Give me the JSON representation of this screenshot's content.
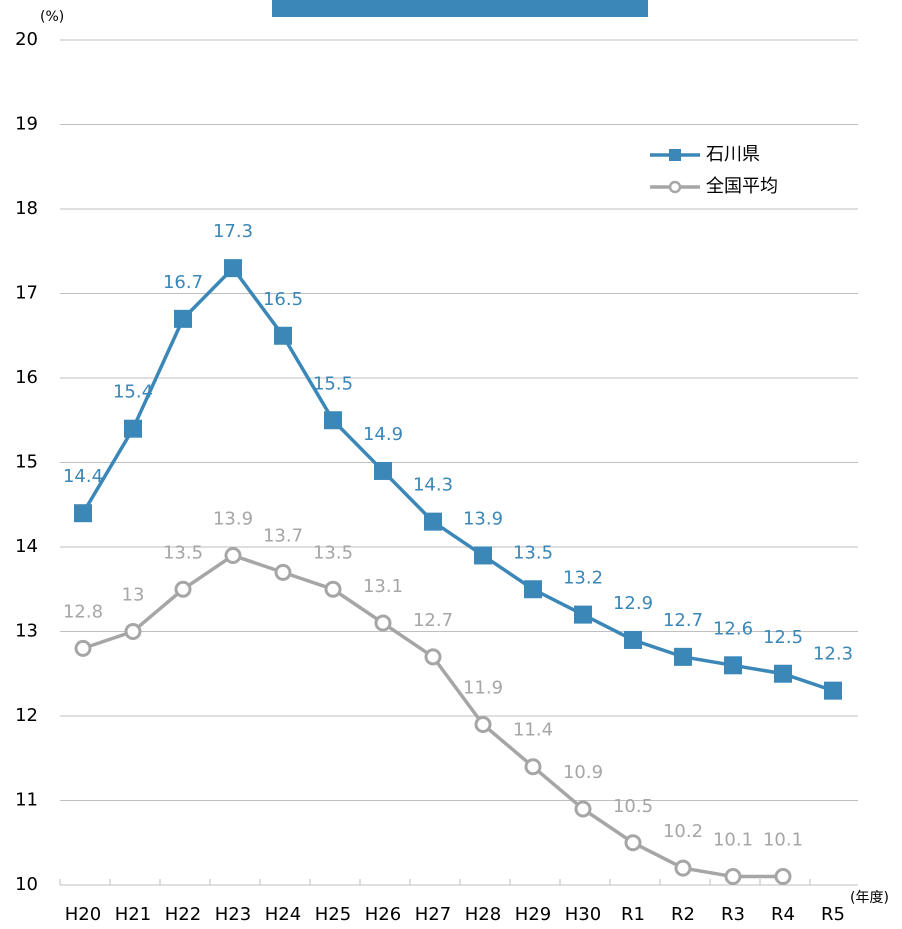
{
  "chart_data": {
    "type": "line",
    "y_unit_label": "(%)",
    "x_unit_label": "(年度)",
    "categories": [
      "H20",
      "H21",
      "H22",
      "H23",
      "H24",
      "H25",
      "H26",
      "H27",
      "H28",
      "H29",
      "H30",
      "R1",
      "R2",
      "R3",
      "R4",
      "R5"
    ],
    "series": [
      {
        "name": "石川県",
        "color": "#3a87b8",
        "marker": "square",
        "values": [
          14.4,
          15.4,
          16.7,
          17.3,
          16.5,
          15.5,
          14.9,
          14.3,
          13.9,
          13.5,
          13.2,
          12.9,
          12.7,
          12.6,
          12.5,
          12.3
        ]
      },
      {
        "name": "全国平均",
        "color": "#a6a6a6",
        "marker": "circle",
        "values": [
          12.8,
          13,
          13.5,
          13.9,
          13.7,
          13.5,
          13.1,
          12.7,
          11.9,
          11.4,
          10.9,
          10.5,
          10.2,
          10.1,
          10.1,
          null
        ]
      }
    ],
    "ylim": [
      10,
      20
    ],
    "yticks": [
      10,
      11,
      12,
      13,
      14,
      15,
      16,
      17,
      18,
      19,
      20
    ],
    "grid": true,
    "legend": "upper right"
  }
}
